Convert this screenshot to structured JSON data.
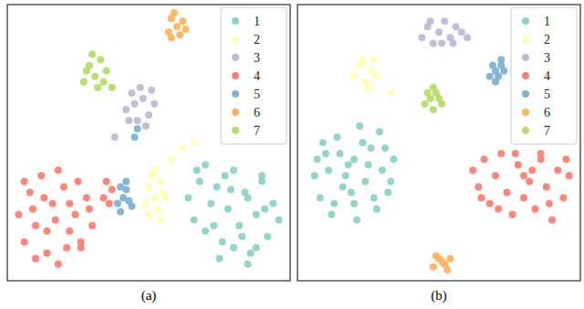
{
  "chart_data": [
    {
      "type": "scatter",
      "title": "(a)",
      "xlim": [
        0,
        100
      ],
      "ylim": [
        0,
        100
      ],
      "tick_labels": false,
      "grid": false,
      "legend": "upper right",
      "series": [
        {
          "name": "1",
          "color": "#8dd3c7",
          "marker": "circle",
          "x": [
            64,
            66,
            68,
            70,
            72,
            74,
            76,
            78,
            80,
            82,
            84,
            86,
            88,
            90,
            92,
            94,
            96,
            70,
            75,
            80,
            85,
            90,
            67,
            73,
            79,
            85,
            91,
            77,
            83,
            88
          ],
          "y": [
            30,
            22,
            36,
            18,
            28,
            34,
            14,
            26,
            40,
            20,
            32,
            10,
            24,
            38,
            16,
            28,
            22,
            42,
            8,
            12,
            30,
            36,
            40,
            20,
            33,
            6,
            26,
            38,
            16,
            12
          ]
        },
        {
          "name": "2",
          "color": "#ffffb3",
          "marker": "circle",
          "x": [
            49,
            50,
            51,
            52,
            53,
            54,
            55,
            50,
            52,
            54,
            56,
            58,
            62,
            66
          ],
          "y": [
            28,
            34,
            38,
            30,
            26,
            36,
            32,
            24,
            40,
            22,
            30,
            44,
            48,
            50
          ]
        },
        {
          "name": "3",
          "color": "#bebada",
          "marker": "circle",
          "x": [
            42,
            44,
            46,
            48,
            50,
            52,
            43,
            47,
            51,
            45,
            49,
            38
          ],
          "y": [
            62,
            68,
            58,
            66,
            60,
            64,
            58,
            70,
            69,
            64,
            56,
            52
          ]
        },
        {
          "name": "4",
          "color": "#fb8072",
          "marker": "circle",
          "x": [
            4,
            6,
            8,
            10,
            12,
            14,
            16,
            18,
            20,
            22,
            24,
            26,
            28,
            30,
            6,
            10,
            14,
            18,
            22,
            26,
            9,
            13,
            17,
            21,
            25,
            29,
            34,
            35,
            36,
            37
          ],
          "y": [
            24,
            14,
            32,
            20,
            38,
            10,
            28,
            6,
            34,
            18,
            24,
            12,
            30,
            20,
            36,
            8,
            18,
            40,
            28,
            14,
            26,
            30,
            22,
            12,
            36,
            26,
            30,
            36,
            28,
            33
          ]
        },
        {
          "name": "5",
          "color": "#80b1d3",
          "marker": "circle",
          "x": [
            39,
            40,
            41,
            42,
            43,
            40,
            42,
            44,
            45,
            46
          ],
          "y": [
            28,
            34,
            30,
            36,
            29,
            25,
            33,
            27,
            52,
            55
          ]
        },
        {
          "name": "6",
          "color": "#fdb462",
          "marker": "circle",
          "x": [
            57,
            58,
            60,
            62,
            59,
            61,
            58,
            63
          ],
          "y": [
            90,
            95,
            92,
            94,
            97,
            89,
            88,
            91
          ]
        },
        {
          "name": "7",
          "color": "#b3de69",
          "marker": "circle",
          "x": [
            27,
            29,
            31,
            33,
            35,
            28,
            32,
            30,
            34,
            37
          ],
          "y": [
            72,
            78,
            74,
            80,
            76,
            76,
            70,
            82,
            72,
            70
          ]
        }
      ]
    },
    {
      "type": "scatter",
      "title": "(b)",
      "xlim": [
        0,
        100
      ],
      "ylim": [
        0,
        100
      ],
      "tick_labels": false,
      "grid": false,
      "legend": "upper right",
      "series": [
        {
          "name": "1",
          "color": "#8dd3c7",
          "marker": "circle",
          "x": [
            6,
            8,
            10,
            12,
            14,
            16,
            18,
            20,
            22,
            24,
            26,
            28,
            30,
            32,
            34,
            9,
            13,
            17,
            21,
            25,
            29,
            33,
            11,
            15,
            19,
            23,
            27,
            31,
            20,
            7
          ],
          "y": [
            38,
            30,
            46,
            24,
            52,
            34,
            42,
            28,
            56,
            36,
            48,
            26,
            40,
            32,
            44,
            50,
            28,
            38,
            22,
            42,
            54,
            36,
            40,
            46,
            32,
            50,
            30,
            48,
            44,
            44
          ]
        },
        {
          "name": "2",
          "color": "#ffffb3",
          "marker": "circle",
          "x": [
            20,
            22,
            24,
            26,
            28,
            23,
            25,
            27,
            33
          ],
          "y": [
            74,
            78,
            72,
            76,
            74,
            80,
            70,
            80,
            68
          ]
        },
        {
          "name": "3",
          "color": "#bebada",
          "marker": "circle",
          "x": [
            44,
            46,
            48,
            50,
            52,
            54,
            56,
            58,
            47,
            51,
            55,
            60
          ],
          "y": [
            88,
            92,
            86,
            90,
            94,
            88,
            92,
            90,
            94,
            86,
            86,
            88
          ]
        },
        {
          "name": "4",
          "color": "#fb8072",
          "marker": "circle",
          "x": [
            62,
            64,
            66,
            68,
            70,
            72,
            74,
            76,
            78,
            80,
            82,
            84,
            86,
            88,
            90,
            92,
            94,
            96,
            65,
            71,
            77,
            83,
            89,
            95,
            80,
            86
          ],
          "y": [
            40,
            34,
            44,
            28,
            38,
            46,
            32,
            24,
            42,
            30,
            36,
            26,
            44,
            34,
            22,
            40,
            30,
            38,
            30,
            26,
            46,
            40,
            28,
            44,
            38,
            46
          ]
        },
        {
          "name": "5",
          "color": "#80b1d3",
          "marker": "circle",
          "x": [
            68,
            69,
            70,
            71,
            72,
            73,
            70,
            72
          ],
          "y": [
            74,
            78,
            76,
            74,
            78,
            76,
            72,
            80
          ]
        },
        {
          "name": "6",
          "color": "#fdb462",
          "marker": "circle",
          "x": [
            48,
            50,
            52,
            54,
            49,
            53,
            51
          ],
          "y": [
            5,
            8,
            6,
            8,
            9,
            4,
            7
          ]
        },
        {
          "name": "7",
          "color": "#b3de69",
          "marker": "circle",
          "x": [
            45,
            47,
            49,
            51,
            46,
            50,
            48,
            48
          ],
          "y": [
            64,
            66,
            68,
            64,
            68,
            66,
            62,
            70
          ]
        }
      ]
    }
  ]
}
